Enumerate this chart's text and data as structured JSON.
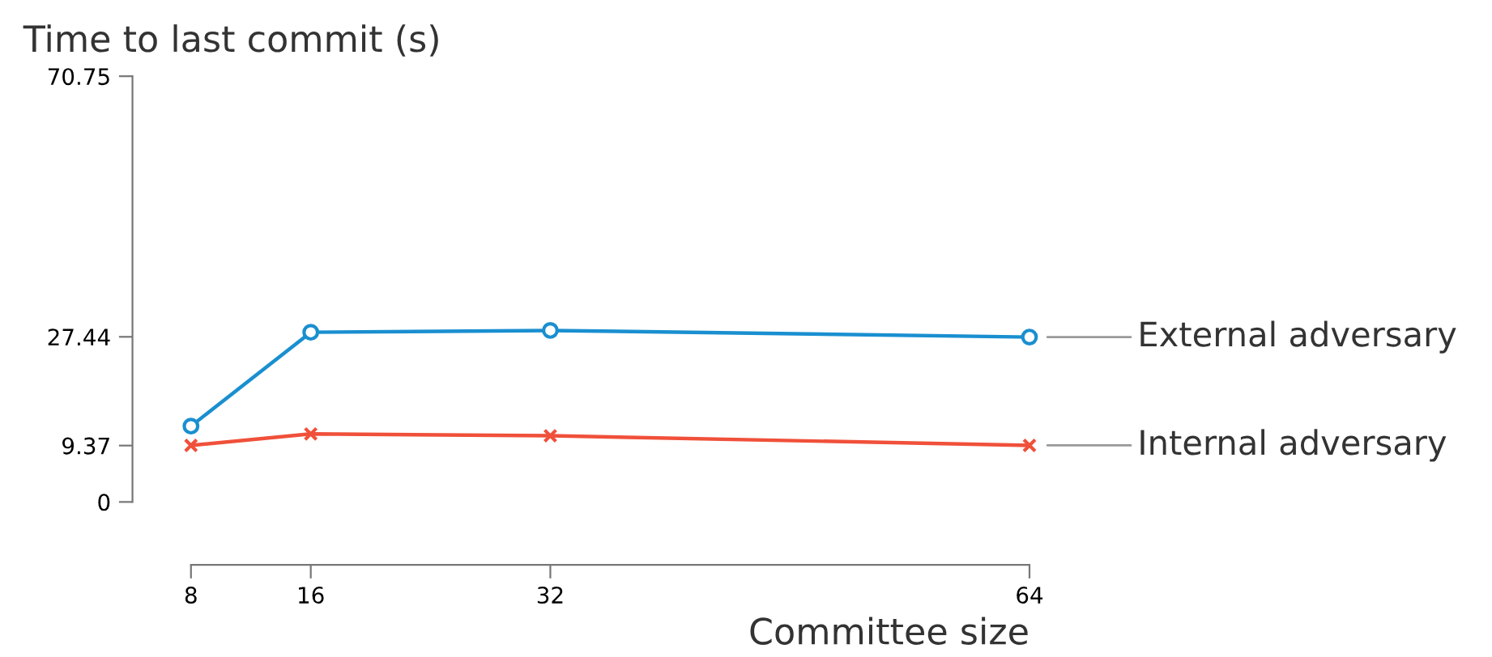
{
  "chart_data": {
    "type": "line",
    "xlabel": "Committee size",
    "ylabel": "Time to last commit (s)",
    "x": [
      8,
      16,
      32,
      64
    ],
    "xlim": [
      8,
      64
    ],
    "xticks": [
      8,
      16,
      32,
      64
    ],
    "ylim": [
      0,
      70.75
    ],
    "yticks": [
      0,
      9.37,
      27.44,
      70.75
    ],
    "grid": false,
    "series": [
      {
        "name": "External adversary",
        "color": "#1a8fd0",
        "marker": "circle",
        "values": [
          12.6,
          28.2,
          28.5,
          27.4
        ]
      },
      {
        "name": "Internal adversary",
        "color": "#f0503a",
        "marker": "cross",
        "values": [
          9.4,
          11.3,
          11.0,
          9.4
        ]
      }
    ]
  }
}
